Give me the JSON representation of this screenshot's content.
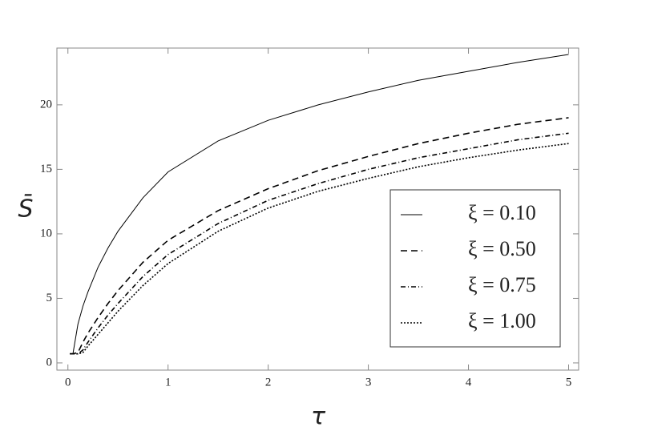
{
  "chart_data": {
    "type": "line",
    "x_label": "τ",
    "y_label": "S̄",
    "x": [
      0.02,
      0.05,
      0.1,
      0.15,
      0.2,
      0.3,
      0.4,
      0.5,
      0.75,
      1,
      1.5,
      2,
      2.5,
      3,
      3.5,
      4,
      4.5,
      5
    ],
    "series": [
      {
        "name": "ξ = 0.10",
        "color": "#000000",
        "dash": "none",
        "values": [
          0.7,
          0.7,
          3.0,
          4.4,
          5.5,
          7.4,
          8.9,
          10.2,
          12.8,
          14.8,
          17.2,
          18.8,
          20.0,
          21.0,
          21.9,
          22.6,
          23.3,
          23.9
        ]
      },
      {
        "name": "ξ = 0.50",
        "color": "#000000",
        "dash": "8,5",
        "values": [
          0.7,
          0.7,
          0.8,
          1.6,
          2.3,
          3.5,
          4.6,
          5.6,
          7.8,
          9.5,
          11.8,
          13.5,
          14.9,
          16.0,
          17.0,
          17.8,
          18.5,
          19.0
        ]
      },
      {
        "name": "ξ = 0.75",
        "color": "#000000",
        "dash": "6,3,1,3",
        "values": [
          0.7,
          0.7,
          0.7,
          1.0,
          1.6,
          2.7,
          3.7,
          4.6,
          6.7,
          8.4,
          10.8,
          12.6,
          13.9,
          15.0,
          15.9,
          16.6,
          17.3,
          17.8
        ]
      },
      {
        "name": "ξ = 1.00",
        "color": "#000000",
        "dash": "2,2",
        "values": [
          0.7,
          0.7,
          0.7,
          0.8,
          1.3,
          2.2,
          3.1,
          4.0,
          6.0,
          7.7,
          10.2,
          12.0,
          13.3,
          14.3,
          15.2,
          15.9,
          16.5,
          17.0
        ]
      }
    ],
    "xlim": [
      -0.11,
      5.1
    ],
    "ylim": [
      -0.56,
      24.4
    ],
    "xticks": [
      0,
      1,
      2,
      3,
      4,
      5
    ],
    "yticks": [
      0,
      5,
      10,
      15,
      20
    ],
    "legend": "lower-right"
  }
}
